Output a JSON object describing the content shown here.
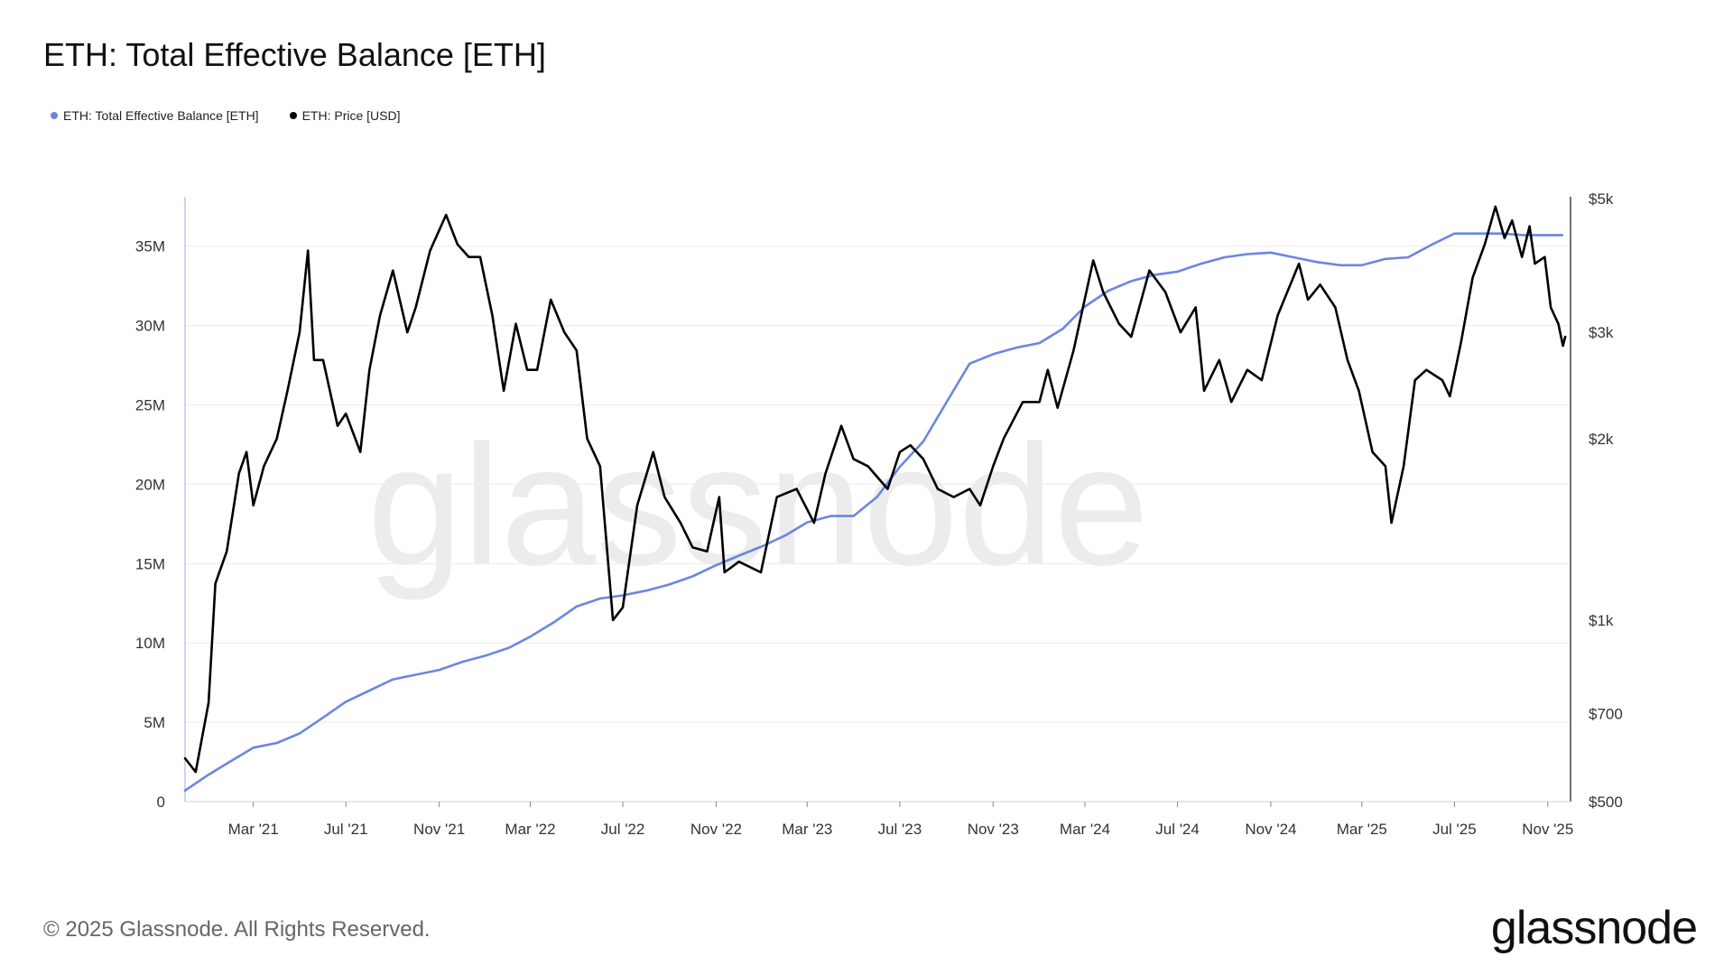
{
  "title": "ETH: Total Effective Balance [ETH]",
  "legend": [
    {
      "label": "ETH: Total Effective Balance [ETH]",
      "color": "#6b86e0"
    },
    {
      "label": "ETH: Price [USD]",
      "color": "#000000"
    }
  ],
  "footer": {
    "copyright": "© 2025 Glassnode. All Rights Reserved.",
    "brand": "glassnode"
  },
  "watermark": "glassnode",
  "chart_data": {
    "type": "line",
    "x_ticks": [
      "Mar '21",
      "Jul '21",
      "Nov '21",
      "Mar '22",
      "Jul '22",
      "Nov '22",
      "Mar '23",
      "Jul '23",
      "Nov '23",
      "Mar '24",
      "Jul '24",
      "Nov '24",
      "Mar '25",
      "Jul '25",
      "Nov '25"
    ],
    "x_range": [
      "2020-12-01",
      "2025-12-01"
    ],
    "y_left": {
      "ticks": [
        "0",
        "5M",
        "10M",
        "15M",
        "20M",
        "25M",
        "30M",
        "35M"
      ],
      "range": [
        0,
        38000000
      ]
    },
    "y_right": {
      "ticks": [
        "$500",
        "$700",
        "$1k",
        "$2k",
        "$3k",
        "$5k"
      ],
      "tick_values": [
        500,
        700,
        1000,
        2000,
        3000,
        5000
      ],
      "range": [
        500,
        5000
      ],
      "scale": "log"
    },
    "grid": true,
    "series": [
      {
        "name": "ETH: Total Effective Balance [ETH]",
        "axis": "left",
        "color": "#6b86e0",
        "points": [
          [
            "2020-12-01",
            700000
          ],
          [
            "2021-01-01",
            1700000
          ],
          [
            "2021-02-01",
            2600000
          ],
          [
            "2021-03-01",
            3400000
          ],
          [
            "2021-04-01",
            3700000
          ],
          [
            "2021-05-01",
            4300000
          ],
          [
            "2021-06-01",
            5300000
          ],
          [
            "2021-07-01",
            6300000
          ],
          [
            "2021-08-01",
            7000000
          ],
          [
            "2021-09-01",
            7700000
          ],
          [
            "2021-10-01",
            8000000
          ],
          [
            "2021-11-01",
            8300000
          ],
          [
            "2021-12-01",
            8800000
          ],
          [
            "2022-01-01",
            9200000
          ],
          [
            "2022-02-01",
            9700000
          ],
          [
            "2022-03-01",
            10400000
          ],
          [
            "2022-04-01",
            11300000
          ],
          [
            "2022-05-01",
            12300000
          ],
          [
            "2022-06-01",
            12800000
          ],
          [
            "2022-07-01",
            13000000
          ],
          [
            "2022-08-01",
            13300000
          ],
          [
            "2022-09-01",
            13700000
          ],
          [
            "2022-10-01",
            14200000
          ],
          [
            "2022-11-01",
            14900000
          ],
          [
            "2022-12-01",
            15500000
          ],
          [
            "2023-01-01",
            16100000
          ],
          [
            "2023-02-01",
            16800000
          ],
          [
            "2023-03-01",
            17600000
          ],
          [
            "2023-04-01",
            18000000
          ],
          [
            "2023-05-01",
            18000000
          ],
          [
            "2023-06-01",
            19200000
          ],
          [
            "2023-07-01",
            21100000
          ],
          [
            "2023-08-01",
            22700000
          ],
          [
            "2023-09-01",
            25200000
          ],
          [
            "2023-10-01",
            27600000
          ],
          [
            "2023-11-01",
            28200000
          ],
          [
            "2023-12-01",
            28600000
          ],
          [
            "2024-01-01",
            28900000
          ],
          [
            "2024-02-01",
            29800000
          ],
          [
            "2024-03-01",
            31200000
          ],
          [
            "2024-04-01",
            32200000
          ],
          [
            "2024-05-01",
            32800000
          ],
          [
            "2024-06-01",
            33200000
          ],
          [
            "2024-07-01",
            33400000
          ],
          [
            "2024-08-01",
            33900000
          ],
          [
            "2024-09-01",
            34300000
          ],
          [
            "2024-10-01",
            34500000
          ],
          [
            "2024-11-01",
            34600000
          ],
          [
            "2024-12-01",
            34300000
          ],
          [
            "2025-01-01",
            34000000
          ],
          [
            "2025-02-01",
            33800000
          ],
          [
            "2025-03-01",
            33800000
          ],
          [
            "2025-04-01",
            34200000
          ],
          [
            "2025-05-01",
            34300000
          ],
          [
            "2025-06-01",
            35100000
          ],
          [
            "2025-07-01",
            35800000
          ],
          [
            "2025-08-01",
            35800000
          ],
          [
            "2025-09-01",
            35800000
          ],
          [
            "2025-10-01",
            35700000
          ],
          [
            "2025-11-01",
            35700000
          ],
          [
            "2025-11-20",
            35700000
          ]
        ]
      },
      {
        "name": "ETH: Price [USD]",
        "axis": "right",
        "color": "#000000",
        "points": [
          [
            "2020-12-01",
            590
          ],
          [
            "2020-12-15",
            560
          ],
          [
            "2021-01-01",
            730
          ],
          [
            "2021-01-10",
            1150
          ],
          [
            "2021-01-25",
            1300
          ],
          [
            "2021-02-10",
            1750
          ],
          [
            "2021-02-20",
            1900
          ],
          [
            "2021-03-01",
            1550
          ],
          [
            "2021-03-15",
            1800
          ],
          [
            "2021-04-01",
            2000
          ],
          [
            "2021-04-15",
            2400
          ],
          [
            "2021-05-01",
            3000
          ],
          [
            "2021-05-12",
            4100
          ],
          [
            "2021-05-20",
            2700
          ],
          [
            "2021-06-01",
            2700
          ],
          [
            "2021-06-20",
            2100
          ],
          [
            "2021-07-01",
            2200
          ],
          [
            "2021-07-20",
            1900
          ],
          [
            "2021-08-01",
            2600
          ],
          [
            "2021-08-15",
            3200
          ],
          [
            "2021-09-01",
            3800
          ],
          [
            "2021-09-20",
            3000
          ],
          [
            "2021-10-01",
            3300
          ],
          [
            "2021-10-20",
            4100
          ],
          [
            "2021-11-10",
            4700
          ],
          [
            "2021-11-25",
            4200
          ],
          [
            "2021-12-10",
            4000
          ],
          [
            "2021-12-25",
            4000
          ],
          [
            "2022-01-10",
            3200
          ],
          [
            "2022-01-25",
            2400
          ],
          [
            "2022-02-10",
            3100
          ],
          [
            "2022-02-25",
            2600
          ],
          [
            "2022-03-10",
            2600
          ],
          [
            "2022-03-28",
            3400
          ],
          [
            "2022-04-15",
            3000
          ],
          [
            "2022-05-01",
            2800
          ],
          [
            "2022-05-15",
            2000
          ],
          [
            "2022-06-01",
            1800
          ],
          [
            "2022-06-18",
            1000
          ],
          [
            "2022-07-01",
            1050
          ],
          [
            "2022-07-20",
            1550
          ],
          [
            "2022-08-10",
            1900
          ],
          [
            "2022-08-25",
            1600
          ],
          [
            "2022-09-15",
            1450
          ],
          [
            "2022-10-01",
            1320
          ],
          [
            "2022-10-20",
            1300
          ],
          [
            "2022-11-05",
            1600
          ],
          [
            "2022-11-12",
            1200
          ],
          [
            "2022-12-01",
            1250
          ],
          [
            "2022-12-30",
            1200
          ],
          [
            "2023-01-20",
            1600
          ],
          [
            "2023-02-15",
            1650
          ],
          [
            "2023-03-10",
            1450
          ],
          [
            "2023-03-25",
            1750
          ],
          [
            "2023-04-15",
            2100
          ],
          [
            "2023-05-01",
            1850
          ],
          [
            "2023-05-20",
            1800
          ],
          [
            "2023-06-15",
            1650
          ],
          [
            "2023-07-01",
            1900
          ],
          [
            "2023-07-15",
            1950
          ],
          [
            "2023-08-01",
            1850
          ],
          [
            "2023-08-20",
            1650
          ],
          [
            "2023-09-10",
            1600
          ],
          [
            "2023-10-01",
            1650
          ],
          [
            "2023-10-15",
            1550
          ],
          [
            "2023-11-01",
            1800
          ],
          [
            "2023-11-15",
            2000
          ],
          [
            "2023-12-10",
            2300
          ],
          [
            "2024-01-01",
            2300
          ],
          [
            "2024-01-12",
            2600
          ],
          [
            "2024-01-25",
            2250
          ],
          [
            "2024-02-15",
            2800
          ],
          [
            "2024-03-12",
            3950
          ],
          [
            "2024-03-25",
            3500
          ],
          [
            "2024-04-15",
            3100
          ],
          [
            "2024-05-01",
            2950
          ],
          [
            "2024-05-25",
            3800
          ],
          [
            "2024-06-15",
            3500
          ],
          [
            "2024-07-05",
            3000
          ],
          [
            "2024-07-25",
            3300
          ],
          [
            "2024-08-05",
            2400
          ],
          [
            "2024-08-25",
            2700
          ],
          [
            "2024-09-10",
            2300
          ],
          [
            "2024-10-01",
            2600
          ],
          [
            "2024-10-20",
            2500
          ],
          [
            "2024-11-10",
            3200
          ],
          [
            "2024-12-08",
            3900
          ],
          [
            "2024-12-20",
            3400
          ],
          [
            "2025-01-05",
            3600
          ],
          [
            "2025-01-25",
            3300
          ],
          [
            "2025-02-10",
            2700
          ],
          [
            "2025-02-25",
            2400
          ],
          [
            "2025-03-15",
            1900
          ],
          [
            "2025-04-01",
            1800
          ],
          [
            "2025-04-09",
            1450
          ],
          [
            "2025-04-25",
            1800
          ],
          [
            "2025-05-10",
            2500
          ],
          [
            "2025-05-25",
            2600
          ],
          [
            "2025-06-15",
            2500
          ],
          [
            "2025-06-25",
            2350
          ],
          [
            "2025-07-10",
            2900
          ],
          [
            "2025-07-25",
            3700
          ],
          [
            "2025-08-10",
            4200
          ],
          [
            "2025-08-24",
            4850
          ],
          [
            "2025-09-05",
            4300
          ],
          [
            "2025-09-15",
            4600
          ],
          [
            "2025-09-28",
            4000
          ],
          [
            "2025-10-08",
            4500
          ],
          [
            "2025-10-15",
            3900
          ],
          [
            "2025-10-28",
            4000
          ],
          [
            "2025-11-05",
            3300
          ],
          [
            "2025-11-15",
            3100
          ],
          [
            "2025-11-21",
            2850
          ],
          [
            "2025-11-24",
            2950
          ]
        ]
      }
    ]
  }
}
